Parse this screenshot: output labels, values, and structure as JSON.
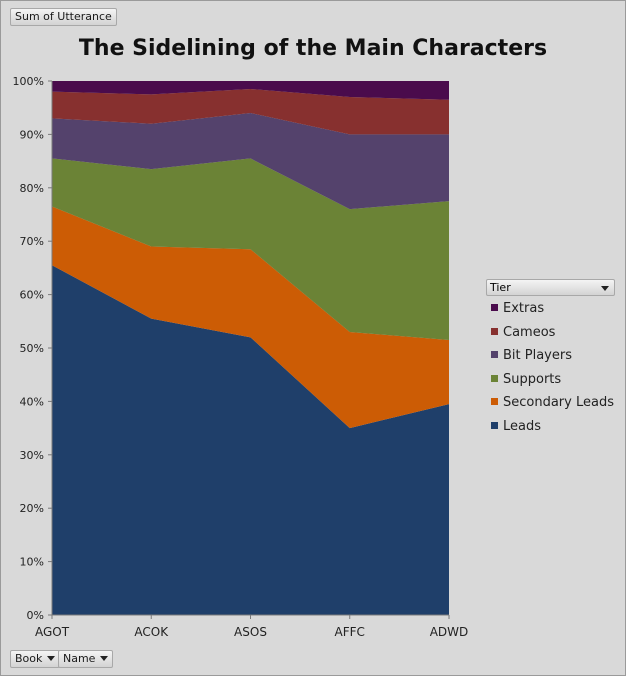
{
  "pivot": {
    "sum_label": "Sum of Utterance",
    "book_label": "Book",
    "name_label": "Name"
  },
  "legend": {
    "title": "Tier"
  },
  "chart_data": {
    "type": "area",
    "stacked": "percent",
    "title": "The Sidelining of the Main Characters",
    "categories": [
      "AGOT",
      "ACOK",
      "ASOS",
      "AFFC",
      "ADWD"
    ],
    "ylim": [
      0,
      100
    ],
    "yticks": [
      "0%",
      "10%",
      "20%",
      "30%",
      "40%",
      "50%",
      "60%",
      "70%",
      "80%",
      "90%",
      "100%"
    ],
    "legend_position": "right",
    "series": [
      {
        "name": "Leads",
        "color": "#1f3f6a",
        "values": [
          65.5,
          55.5,
          52.0,
          35.0,
          39.5
        ]
      },
      {
        "name": "Secondary Leads",
        "color": "#cc5c05",
        "values": [
          11.0,
          13.5,
          16.5,
          18.0,
          12.0
        ]
      },
      {
        "name": "Supports",
        "color": "#6b8336",
        "values": [
          9.0,
          14.5,
          17.0,
          23.0,
          26.0
        ]
      },
      {
        "name": "Bit Players",
        "color": "#54426c",
        "values": [
          7.5,
          8.5,
          8.5,
          14.0,
          12.5
        ]
      },
      {
        "name": "Cameos",
        "color": "#87302f",
        "values": [
          5.0,
          5.5,
          4.5,
          7.0,
          6.5
        ]
      },
      {
        "name": "Extras",
        "color": "#4a0b4c",
        "values": [
          2.0,
          2.5,
          1.5,
          3.0,
          3.5
        ]
      }
    ]
  }
}
